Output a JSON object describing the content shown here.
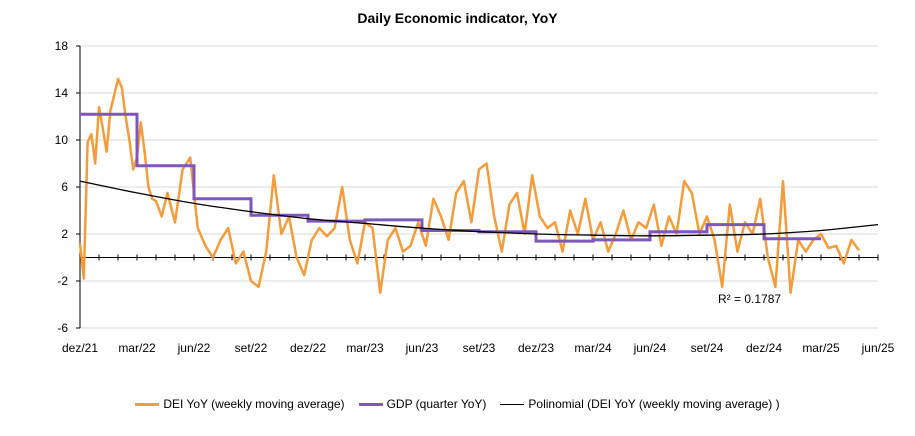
{
  "chart_data": {
    "type": "line",
    "title": "Daily Economic indicator, YoY",
    "xlabel": "",
    "ylabel": "",
    "ylim": [
      -6,
      18
    ],
    "yticks": [
      -6,
      -2,
      2,
      6,
      10,
      14,
      18
    ],
    "xtick_labels": [
      "dez/21",
      "mar/22",
      "jun/22",
      "set/22",
      "dez/22",
      "mar/23",
      "jun/23",
      "set/23",
      "dez/23",
      "mar/24",
      "jun/24",
      "set/24",
      "dez/24",
      "mar/25",
      "jun/25"
    ],
    "x_range_months": [
      0,
      42
    ],
    "grid": "horizontal",
    "legend_position": "bottom",
    "annotation": "R² = 0.1787",
    "series": [
      {
        "name": "DEI YoY (weekly moving average)",
        "color": "#f39c3c",
        "x": [
          0.0,
          0.2,
          0.4,
          0.6,
          0.8,
          1.0,
          1.2,
          1.4,
          1.6,
          1.8,
          2.0,
          2.2,
          2.4,
          2.6,
          2.8,
          3.0,
          3.2,
          3.4,
          3.6,
          3.8,
          4.0,
          4.3,
          4.6,
          5.0,
          5.4,
          5.8,
          6.2,
          6.6,
          7.0,
          7.4,
          7.8,
          8.2,
          8.6,
          9.0,
          9.4,
          9.8,
          10.2,
          10.6,
          11.0,
          11.4,
          11.8,
          12.2,
          12.6,
          13.0,
          13.4,
          13.8,
          14.2,
          14.6,
          15.0,
          15.4,
          15.8,
          16.2,
          16.6,
          17.0,
          17.4,
          17.8,
          18.2,
          18.6,
          19.0,
          19.4,
          19.8,
          20.2,
          20.6,
          21.0,
          21.4,
          21.8,
          22.2,
          22.6,
          23.0,
          23.4,
          23.8,
          24.2,
          24.6,
          25.0,
          25.4,
          25.8,
          26.2,
          26.6,
          27.0,
          27.4,
          27.8,
          28.2,
          28.6,
          29.0,
          29.4,
          29.8,
          30.2,
          30.6,
          31.0,
          31.4,
          31.8,
          32.2,
          32.6,
          33.0,
          33.4,
          33.8,
          34.2,
          34.6,
          35.0,
          35.4,
          35.8,
          36.2,
          36.6,
          37.0,
          37.4,
          37.8,
          38.2,
          38.6,
          39.0,
          39.4,
          39.8,
          40.2,
          40.6,
          41.0
        ],
        "values": [
          1.2,
          -1.8,
          9.8,
          10.5,
          8.0,
          12.8,
          11.0,
          9.0,
          12.5,
          13.8,
          15.2,
          14.5,
          12.0,
          10.0,
          7.5,
          8.5,
          11.5,
          9.0,
          6.0,
          5.0,
          4.8,
          3.5,
          5.5,
          3.0,
          7.5,
          8.5,
          2.5,
          1.0,
          0.0,
          1.5,
          2.5,
          -0.5,
          0.5,
          -2.0,
          -2.5,
          0.5,
          7.0,
          2.0,
          3.5,
          0.0,
          -1.5,
          1.5,
          2.5,
          1.8,
          2.5,
          6.0,
          1.5,
          -0.5,
          3.0,
          2.5,
          -3.0,
          1.5,
          2.5,
          0.5,
          1.0,
          3.0,
          1.0,
          5.0,
          3.5,
          1.5,
          5.5,
          6.5,
          3.0,
          7.5,
          8.0,
          3.5,
          0.5,
          4.5,
          5.5,
          2.0,
          7.0,
          3.5,
          2.5,
          3.0,
          0.5,
          4.0,
          2.0,
          5.0,
          1.5,
          3.0,
          0.5,
          2.0,
          4.0,
          1.5,
          3.0,
          2.5,
          4.5,
          1.0,
          3.5,
          2.0,
          6.5,
          5.5,
          2.0,
          3.5,
          1.5,
          -2.5,
          4.5,
          0.5,
          3.0,
          2.0,
          5.0,
          0.0,
          -2.5,
          6.5,
          -3.0,
          1.5,
          0.5,
          1.5,
          2.0,
          0.8,
          1.0,
          -0.5,
          1.5,
          0.6
        ]
      },
      {
        "name": "GDP (quarter YoY)",
        "color": "#7e57b8",
        "steps": [
          {
            "x0": 0.0,
            "x1": 3.0,
            "y": 12.2
          },
          {
            "x0": 3.0,
            "x1": 6.0,
            "y": 7.8
          },
          {
            "x0": 6.0,
            "x1": 9.0,
            "y": 5.0
          },
          {
            "x0": 9.0,
            "x1": 12.0,
            "y": 3.6
          },
          {
            "x0": 12.0,
            "x1": 15.0,
            "y": 3.1
          },
          {
            "x0": 15.0,
            "x1": 18.0,
            "y": 3.2
          },
          {
            "x0": 18.0,
            "x1": 21.0,
            "y": 2.3
          },
          {
            "x0": 21.0,
            "x1": 24.0,
            "y": 2.2
          },
          {
            "x0": 24.0,
            "x1": 27.0,
            "y": 1.4
          },
          {
            "x0": 27.0,
            "x1": 30.0,
            "y": 1.5
          },
          {
            "x0": 30.0,
            "x1": 33.0,
            "y": 2.2
          },
          {
            "x0": 33.0,
            "x1": 36.0,
            "y": 2.8
          },
          {
            "x0": 36.0,
            "x1": 39.0,
            "y": 1.6
          }
        ]
      },
      {
        "name": "Polinomial (DEI YoY (weekly moving average) )",
        "color": "#000000",
        "x": [
          0,
          3,
          6,
          9,
          12,
          15,
          18,
          21,
          24,
          27,
          30,
          33,
          36,
          39,
          42
        ],
        "values": [
          6.5,
          5.5,
          4.6,
          3.9,
          3.3,
          2.9,
          2.5,
          2.2,
          2.0,
          1.9,
          1.85,
          1.9,
          2.0,
          2.3,
          2.8
        ]
      }
    ]
  }
}
